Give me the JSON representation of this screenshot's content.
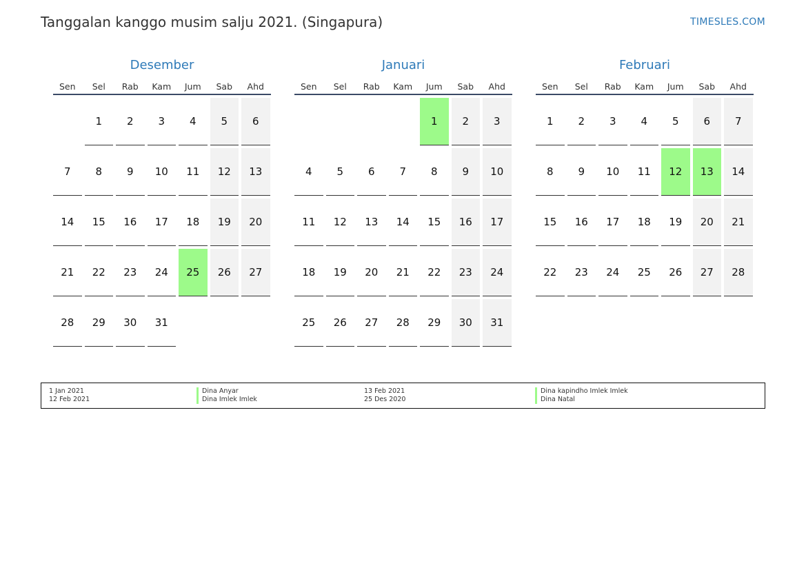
{
  "header": {
    "title": "Tanggalan kanggo musim salju 2021. (Singapura)",
    "brand": "TIMESLES.COM"
  },
  "colors": {
    "holiday": "#9dfa8a",
    "weekend": "#f2f2f2",
    "accent": "#2e7ab8"
  },
  "weekdays": [
    "Sen",
    "Sel",
    "Rab",
    "Kam",
    "Jum",
    "Sab",
    "Ahd"
  ],
  "months": [
    {
      "name": "Desember",
      "offset": 1,
      "days": 31,
      "holidays": [
        25
      ],
      "numbers": [
        "1",
        "2",
        "3",
        "4",
        "5",
        "6",
        "7",
        "8",
        "9",
        "10",
        "11",
        "12",
        "13",
        "14",
        "15",
        "16",
        "17",
        "18",
        "19",
        "20",
        "21",
        "22",
        "23",
        "24",
        "25",
        "26",
        "27",
        "28",
        "29",
        "30",
        "31"
      ]
    },
    {
      "name": "Januari",
      "offset": 4,
      "days": 31,
      "holidays": [
        1
      ],
      "numbers": [
        "1",
        "2",
        "3",
        "4",
        "5",
        "6",
        "7",
        "8",
        "9",
        "10",
        "11",
        "12",
        "13",
        "14",
        "15",
        "16",
        "17",
        "18",
        "19",
        "20",
        "21",
        "22",
        "23",
        "24",
        "25",
        "26",
        "27",
        "28",
        "29",
        "30",
        "31"
      ]
    },
    {
      "name": "Februari",
      "offset": 0,
      "days": 28,
      "holidays": [
        12,
        13
      ],
      "numbers": [
        "1",
        "2",
        "3",
        "4",
        "5",
        "6",
        "7",
        "8",
        "9",
        "10",
        "11",
        "12",
        "13",
        "14",
        "15",
        "16",
        "17",
        "18",
        "19",
        "20",
        "21",
        "22",
        "23",
        "24",
        "25",
        "26",
        "27",
        "28"
      ]
    }
  ],
  "legend": [
    {
      "date": "1 Jan 2021",
      "name": "Dina Anyar"
    },
    {
      "date": "12 Feb 2021",
      "name": "Dina Imlek Imlek"
    },
    {
      "date": "13 Feb 2021",
      "name": "Dina kapindho Imlek Imlek"
    },
    {
      "date": "25 Des 2020",
      "name": "Dina Natal"
    }
  ]
}
